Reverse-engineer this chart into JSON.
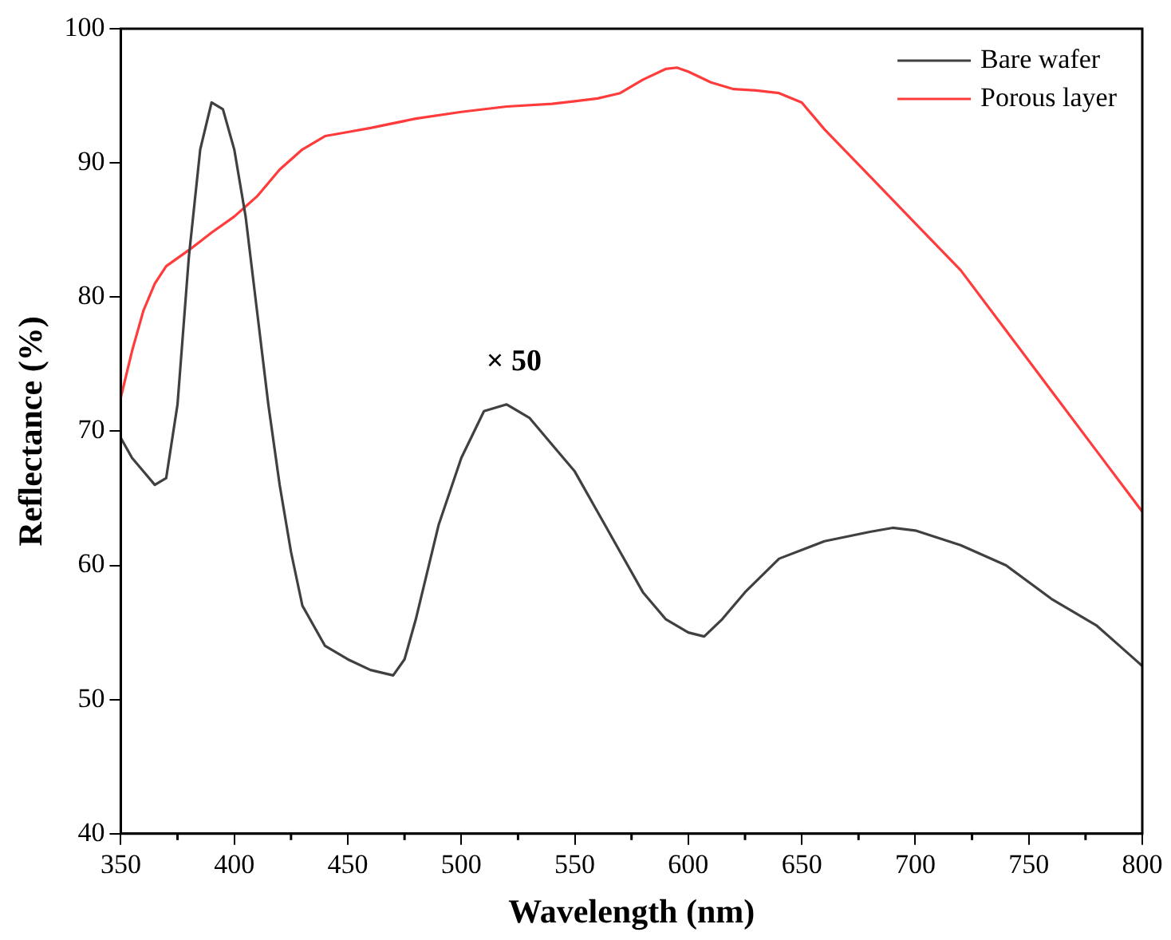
{
  "chart_data": {
    "type": "line",
    "xlabel": "Wavelength (nm)",
    "ylabel": "Reflectance (%)",
    "xlim": [
      350,
      800
    ],
    "xticks": [
      350,
      400,
      450,
      500,
      550,
      600,
      650,
      700,
      750,
      800
    ],
    "ylim": [
      40,
      100
    ],
    "yticks": [
      40,
      50,
      60,
      70,
      80,
      90,
      100
    ],
    "grid": false,
    "legend": "top right",
    "marker": "none",
    "line_style": "solid",
    "annotations": [
      "× 50"
    ],
    "series": [
      {
        "name": "Bare wafer",
        "color": "#404040",
        "x": [
          350,
          355,
          360,
          365,
          370,
          375,
          380,
          385,
          390,
          395,
          400,
          405,
          410,
          415,
          420,
          425,
          430,
          440,
          450,
          460,
          470,
          475,
          480,
          490,
          500,
          510,
          520,
          530,
          540,
          550,
          560,
          570,
          580,
          590,
          600,
          607,
          615,
          625,
          640,
          660,
          680,
          690,
          700,
          720,
          740,
          760,
          780,
          790,
          800
        ],
        "values": [
          69.5,
          68,
          67,
          66,
          66.5,
          72,
          83,
          91,
          94.5,
          94,
          91,
          86,
          79,
          72,
          66,
          61,
          57,
          54,
          53,
          52.2,
          51.8,
          53,
          56,
          63,
          68,
          71.5,
          72,
          71,
          69,
          67,
          64,
          61,
          58,
          56,
          55,
          54.7,
          56,
          58,
          60.5,
          61.8,
          62.5,
          62.8,
          62.6,
          61.5,
          60,
          57.5,
          55.5,
          54,
          52.5
        ]
      },
      {
        "name": "Porous layer",
        "color": "#ff3b3b",
        "x": [
          350,
          355,
          360,
          365,
          370,
          380,
          390,
          400,
          410,
          420,
          430,
          440,
          450,
          460,
          480,
          500,
          520,
          540,
          550,
          560,
          570,
          580,
          590,
          595,
          600,
          610,
          620,
          630,
          640,
          650,
          660,
          680,
          700,
          720,
          740,
          760,
          780,
          800
        ],
        "values": [
          72.5,
          76,
          79,
          81,
          82.3,
          83.5,
          84.8,
          86,
          87.5,
          89.5,
          91,
          92,
          92.3,
          92.6,
          93.3,
          93.8,
          94.2,
          94.4,
          94.6,
          94.8,
          95.2,
          96.2,
          97,
          97.1,
          96.8,
          96,
          95.5,
          95.4,
          95.2,
          94.5,
          92.5,
          89,
          85.5,
          82,
          77.5,
          73,
          68.5,
          64
        ]
      }
    ]
  }
}
